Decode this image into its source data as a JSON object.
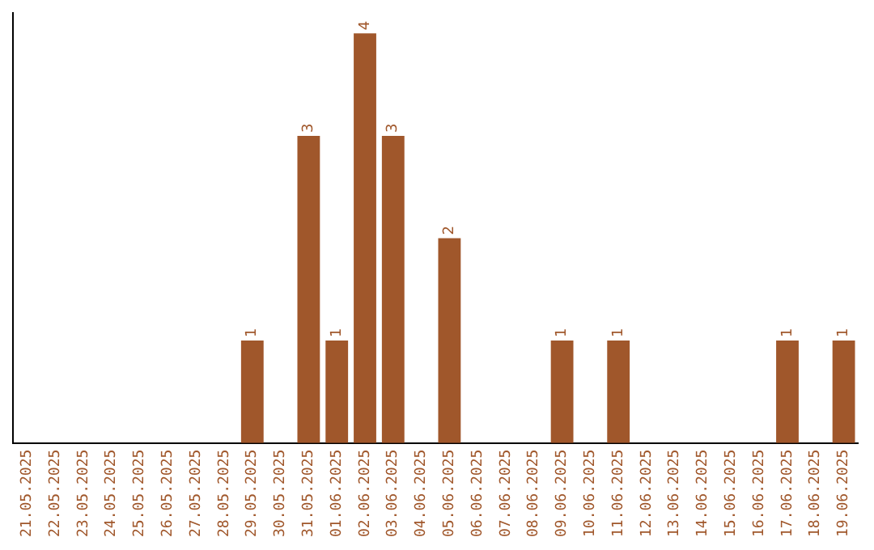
{
  "chart_data": {
    "type": "bar",
    "categories": [
      "21.05.2025",
      "22.05.2025",
      "23.05.2025",
      "24.05.2025",
      "25.05.2025",
      "26.05.2025",
      "27.05.2025",
      "28.05.2025",
      "29.05.2025",
      "30.05.2025",
      "31.05.2025",
      "01.06.2025",
      "02.06.2025",
      "03.06.2025",
      "04.06.2025",
      "05.06.2025",
      "06.06.2025",
      "07.06.2025",
      "08.06.2025",
      "09.06.2025",
      "10.06.2025",
      "11.06.2025",
      "12.06.2025",
      "13.06.2025",
      "14.06.2025",
      "15.06.2025",
      "16.06.2025",
      "17.06.2025",
      "18.06.2025",
      "19.06.2025"
    ],
    "values": [
      0,
      0,
      0,
      0,
      0,
      0,
      0,
      0,
      1,
      0,
      3,
      1,
      4,
      3,
      0,
      2,
      0,
      0,
      0,
      1,
      0,
      1,
      0,
      0,
      0,
      0,
      0,
      1,
      0,
      1
    ],
    "value_labels": [
      null,
      null,
      null,
      null,
      null,
      null,
      null,
      null,
      "1",
      null,
      "3",
      "1",
      "4",
      "3",
      null,
      "2",
      null,
      null,
      null,
      "1",
      null,
      "1",
      null,
      null,
      null,
      null,
      null,
      "1",
      null,
      "1"
    ],
    "color": "#a0572b",
    "ylim": [
      0,
      4.2
    ],
    "tick_labels": "x",
    "grid": false,
    "legend": false
  }
}
